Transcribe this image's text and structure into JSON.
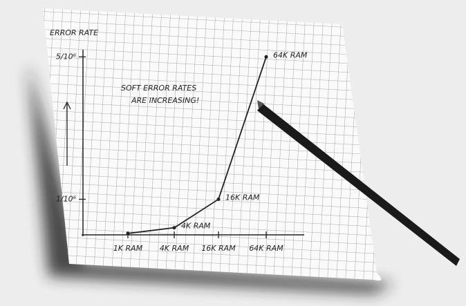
{
  "chart_data": {
    "type": "line",
    "y_label": "ERROR RATE",
    "annotation": [
      "SOFT ERROR RATES",
      "ARE INCREASING!"
    ],
    "categories": [
      "1K RAM",
      "4K RAM",
      "16K RAM",
      "64K RAM"
    ],
    "values": [
      4e-08,
      2e-07,
      1e-06,
      5e-06
    ],
    "point_labels": [
      null,
      "4K RAM",
      "16K RAM",
      "64K RAM"
    ],
    "color": "#222222",
    "ylim": [
      0,
      5.2e-06
    ],
    "yticks": [
      {
        "value": 1e-06,
        "label": "1/10⁶"
      },
      {
        "value": 5e-06,
        "label": "5/10⁶"
      }
    ]
  }
}
